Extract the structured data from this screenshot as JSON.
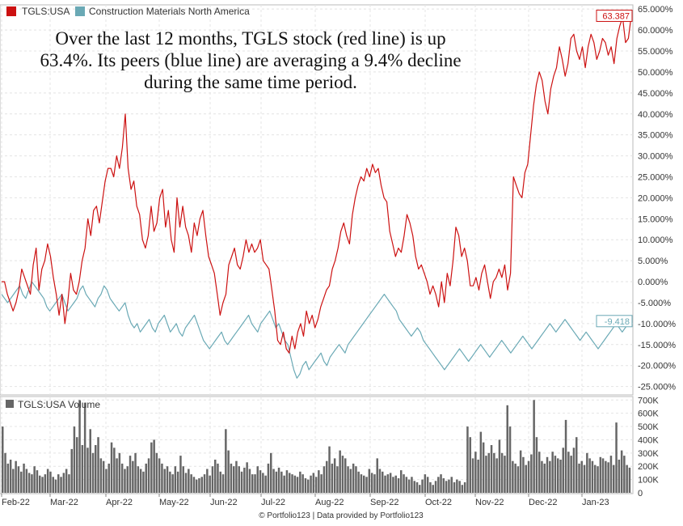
{
  "legend": [
    {
      "label": "TGLS:USA",
      "color": "#cc1111"
    },
    {
      "label": "Construction Materials North America",
      "color": "#6aa9b5"
    }
  ],
  "annotation": [
    "Over the last 12 months, TGLS stock (red line) is up",
    "63.4%. Its peers (blue line) are averaging a 9.4% decline",
    "during the same time period."
  ],
  "footer": "© Portfolio123 | Data provided by Portfolio123",
  "chart_data": [
    {
      "type": "line",
      "y_unit": "%",
      "ylim": [
        -27,
        66
      ],
      "y_ticks": [
        65,
        60,
        55,
        50,
        45,
        40,
        35,
        30,
        25,
        20,
        15,
        10,
        5,
        0,
        -5,
        -10,
        -15,
        -20,
        -25
      ],
      "y_tick_labels": [
        "65.000%",
        "60.000%",
        "55.000%",
        "50.000%",
        "45.000%",
        "40.000%",
        "35.000%",
        "30.000%",
        "25.000%",
        "20.000%",
        "15.000%",
        "10.000%",
        "5.000%",
        "0.000%",
        "-5.000%",
        "-10.000%",
        "-15.000%",
        "-20.000%",
        "-25.000%"
      ],
      "x_tick_labels": [
        "Feb-22",
        "Mar-22",
        "Apr-22",
        "May-22",
        "Jun-22",
        "Jul-22",
        "Aug-22",
        "Sep-22",
        "Oct-22",
        "Nov-22",
        "Dec-22",
        "Jan-23"
      ],
      "grid": true,
      "legend_position": "top-left",
      "series": [
        {
          "name": "TGLS:USA",
          "color": "#cc1111",
          "last_value_label": "63.387",
          "values": [
            0,
            0,
            -3,
            -5,
            -7,
            -5,
            -2,
            3,
            1,
            -1,
            -3,
            4,
            8,
            -2,
            3,
            5,
            9,
            6,
            1,
            -3,
            -8,
            -3,
            -10,
            -5,
            2,
            -2,
            -3,
            0,
            5,
            8,
            15,
            11,
            17,
            18,
            14,
            19,
            24,
            27,
            27,
            25,
            30,
            27,
            32,
            40,
            27,
            22,
            24,
            18,
            16,
            10,
            8,
            11,
            18,
            12,
            14,
            20,
            22,
            13,
            17,
            10,
            7,
            20,
            13,
            18,
            13,
            11,
            7,
            14,
            11,
            15,
            17,
            11,
            6,
            4,
            2,
            -3,
            -8,
            -5,
            -3,
            4,
            6,
            8,
            4,
            3,
            6,
            10,
            7,
            9,
            7,
            8,
            10,
            5,
            4,
            3,
            -2,
            -7,
            -14,
            -15,
            -12,
            -16,
            -17,
            -13,
            -16,
            -12,
            -10,
            -13,
            -7,
            -10,
            -8,
            -11,
            -9,
            -6,
            -4,
            -2,
            -1,
            3,
            5,
            8,
            12,
            14,
            11,
            9,
            16,
            20,
            23,
            25,
            24,
            27,
            25,
            28,
            26,
            27,
            23,
            20,
            19,
            12,
            9,
            6,
            8,
            7,
            11,
            16,
            14,
            11,
            6,
            3,
            4,
            2,
            0,
            -3,
            -1,
            -3,
            -6,
            0,
            -5,
            2,
            -1,
            5,
            13,
            11,
            6,
            8,
            5,
            -1,
            -1,
            1,
            -2,
            2,
            4,
            0,
            -4,
            0,
            1,
            3,
            1,
            4,
            -2,
            2,
            25,
            23,
            21,
            20,
            26,
            28,
            35,
            42,
            47,
            50,
            48,
            43,
            40,
            46,
            49,
            51,
            56,
            53,
            49,
            52,
            58,
            59,
            55,
            53,
            56,
            51,
            56,
            59,
            57,
            53,
            55,
            58,
            57,
            54,
            56,
            52,
            58,
            61,
            63,
            57,
            58,
            63.4
          ],
          "note": "daily TGLS:USA return since start of window, percent"
        },
        {
          "name": "Construction Materials North America",
          "color": "#6aa9b5",
          "last_value_label": "-9.418",
          "values": [
            -3,
            -4,
            -5,
            -4,
            -3,
            -2,
            -1,
            -3,
            -4,
            -2,
            0,
            -1,
            -2,
            -3,
            -4,
            -6,
            -7,
            -6,
            -5,
            -4,
            -3,
            -5,
            -7,
            -6,
            -5,
            -4,
            -2,
            -1,
            -3,
            -4,
            -5,
            -6,
            -4,
            -3,
            -1,
            -2,
            -4,
            -5,
            -6,
            -7,
            -6,
            -5,
            -8,
            -10,
            -11,
            -10,
            -12,
            -11,
            -10,
            -9,
            -11,
            -12,
            -10,
            -9,
            -8,
            -10,
            -12,
            -11,
            -10,
            -12,
            -13,
            -11,
            -10,
            -9,
            -8,
            -10,
            -12,
            -14,
            -15,
            -16,
            -15,
            -14,
            -13,
            -12,
            -14,
            -15,
            -14,
            -13,
            -12,
            -11,
            -10,
            -9,
            -8,
            -10,
            -11,
            -12,
            -10,
            -9,
            -8,
            -7,
            -9,
            -11,
            -10,
            -12,
            -14,
            -15,
            -18,
            -21,
            -23,
            -22,
            -20,
            -19,
            -21,
            -20,
            -19,
            -18,
            -17,
            -19,
            -20,
            -18,
            -17,
            -16,
            -15,
            -16,
            -17,
            -15,
            -14,
            -13,
            -12,
            -11,
            -10,
            -9,
            -8,
            -7,
            -6,
            -5,
            -4,
            -3,
            -4,
            -5,
            -6,
            -7,
            -9,
            -10,
            -11,
            -12,
            -13,
            -12,
            -11,
            -12,
            -14,
            -15,
            -16,
            -17,
            -18,
            -19,
            -20,
            -21,
            -20,
            -19,
            -18,
            -17,
            -16,
            -17,
            -18,
            -19,
            -18,
            -17,
            -16,
            -15,
            -16,
            -17,
            -18,
            -17,
            -16,
            -15,
            -14,
            -15,
            -16,
            -17,
            -16,
            -15,
            -14,
            -13,
            -14,
            -15,
            -16,
            -15,
            -14,
            -13,
            -12,
            -11,
            -10,
            -11,
            -12,
            -11,
            -10,
            -9,
            -10,
            -11,
            -12,
            -13,
            -14,
            -13,
            -12,
            -13,
            -14,
            -15,
            -16,
            -15,
            -14,
            -13,
            -12,
            -11,
            -10,
            -11,
            -12,
            -11,
            -10,
            -9.4
          ],
          "note": "daily peer group average return, percent"
        }
      ]
    },
    {
      "type": "bar",
      "title": "TGLS:USA Volume",
      "ylim": [
        0,
        720000
      ],
      "y_ticks": [
        0,
        100000,
        200000,
        300000,
        400000,
        500000,
        600000,
        700000
      ],
      "y_tick_labels": [
        "0",
        "100K",
        "200K",
        "300K",
        "400K",
        "500K",
        "600K",
        "700K"
      ],
      "color": "#666666",
      "values": [
        500000,
        300000,
        220000,
        250000,
        180000,
        240000,
        200000,
        160000,
        220000,
        180000,
        150000,
        140000,
        200000,
        170000,
        130000,
        120000,
        140000,
        180000,
        160000,
        120000,
        100000,
        140000,
        120000,
        150000,
        180000,
        140000,
        330000,
        500000,
        420000,
        700000,
        360000,
        680000,
        340000,
        480000,
        300000,
        360000,
        420000,
        260000,
        240000,
        180000,
        220000,
        380000,
        340000,
        260000,
        300000,
        220000,
        180000,
        200000,
        280000,
        240000,
        300000,
        200000,
        180000,
        160000,
        220000,
        260000,
        380000,
        400000,
        300000,
        260000,
        220000,
        180000,
        200000,
        160000,
        140000,
        200000,
        160000,
        280000,
        200000,
        150000,
        180000,
        140000,
        120000,
        100000,
        110000,
        120000,
        140000,
        180000,
        130000,
        200000,
        250000,
        220000,
        160000,
        140000,
        480000,
        320000,
        220000,
        200000,
        240000,
        200000,
        160000,
        190000,
        230000,
        180000,
        140000,
        140000,
        200000,
        170000,
        150000,
        130000,
        220000,
        300000,
        180000,
        160000,
        190000,
        160000,
        130000,
        170000,
        150000,
        140000,
        130000,
        120000,
        160000,
        140000,
        110000,
        100000,
        130000,
        150000,
        120000,
        170000,
        140000,
        200000,
        240000,
        350000,
        220000,
        260000,
        200000,
        320000,
        280000,
        260000,
        200000,
        180000,
        220000,
        200000,
        160000,
        140000,
        130000,
        120000,
        180000,
        150000,
        140000,
        260000,
        180000,
        160000,
        130000,
        140000,
        150000,
        120000,
        130000,
        110000,
        170000,
        140000,
        120000,
        100000,
        120000,
        90000,
        80000,
        60000,
        100000,
        140000,
        120000,
        80000,
        60000,
        90000,
        120000,
        140000,
        110000,
        90000,
        100000,
        120000,
        80000,
        100000,
        90000,
        60000,
        80000,
        500000,
        420000,
        260000,
        310000,
        250000,
        460000,
        380000,
        280000,
        300000,
        360000,
        300000,
        260000,
        400000,
        300000,
        280000,
        660000,
        500000,
        240000,
        220000,
        200000,
        320000,
        270000,
        210000,
        240000,
        290000,
        700000,
        420000,
        310000,
        240000,
        220000,
        270000,
        240000,
        310000,
        280000,
        260000,
        250000,
        340000,
        550000,
        310000,
        280000,
        340000,
        420000,
        220000,
        240000,
        210000,
        300000,
        260000,
        240000,
        210000,
        200000,
        270000,
        260000,
        240000,
        230000,
        280000,
        210000,
        530000,
        250000,
        320000,
        280000,
        210000,
        190000
      ]
    }
  ]
}
